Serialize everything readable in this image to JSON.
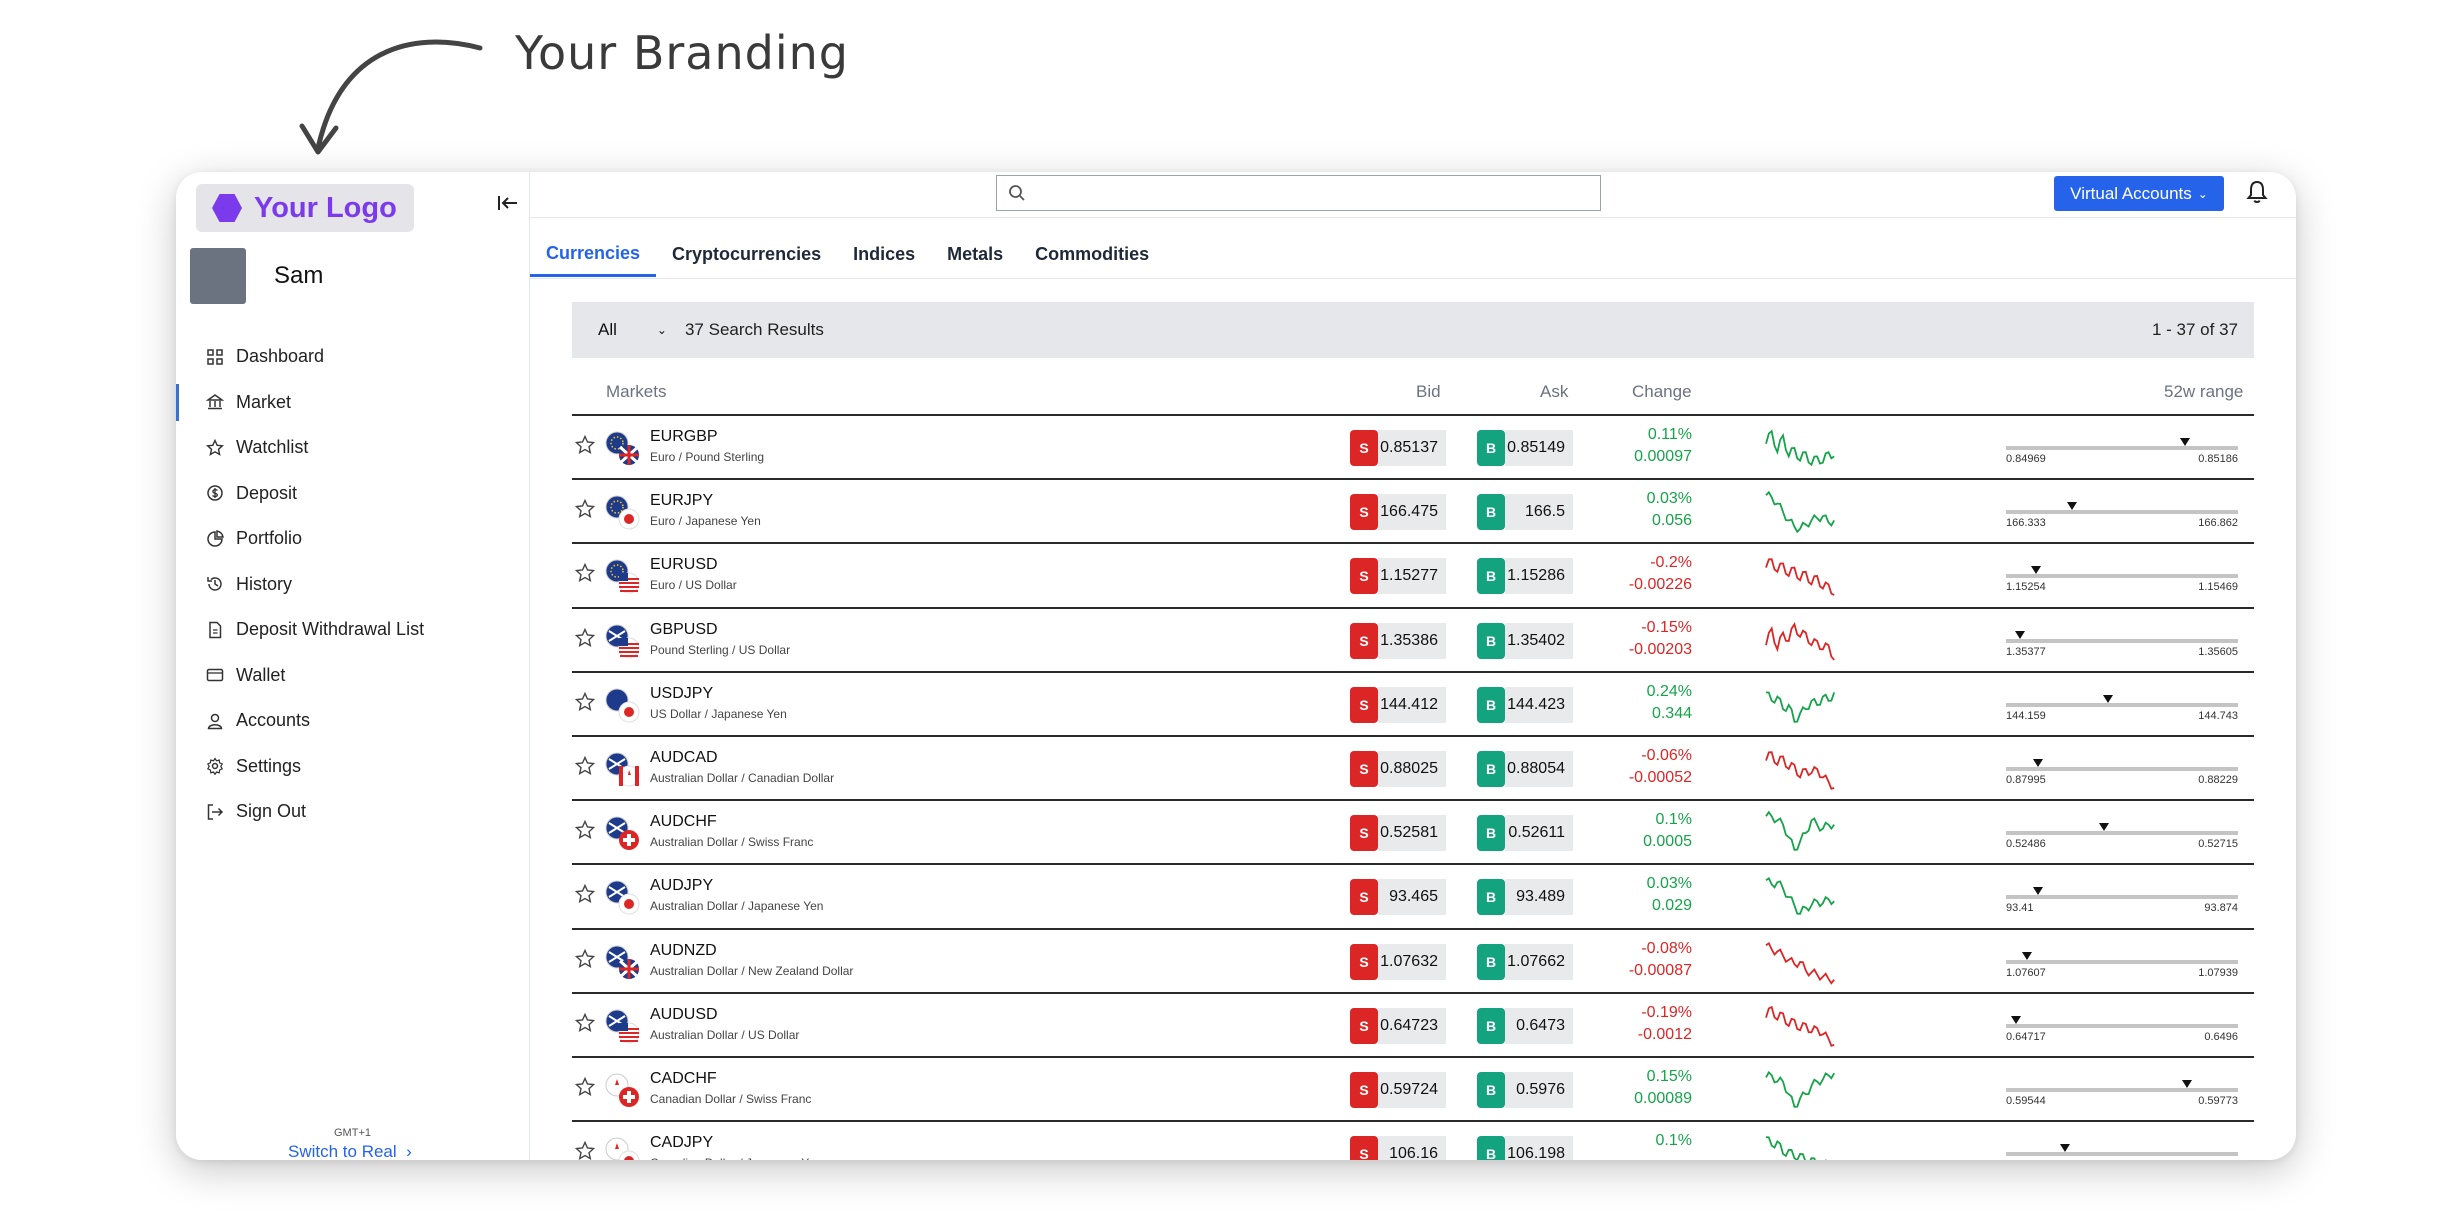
{
  "annotation": {
    "text": "Your Branding"
  },
  "brand": {
    "logo_text": "Your Logo",
    "accent": "#7c3aed"
  },
  "user": {
    "name": "Sam"
  },
  "nav": [
    {
      "label": "Dashboard",
      "icon": "grid-icon"
    },
    {
      "label": "Market",
      "icon": "bank-icon",
      "active": true
    },
    {
      "label": "Watchlist",
      "icon": "star-icon"
    },
    {
      "label": "Deposit",
      "icon": "coin-icon"
    },
    {
      "label": "Portfolio",
      "icon": "pie-chart-icon"
    },
    {
      "label": "History",
      "icon": "history-icon"
    },
    {
      "label": "Deposit Withdrawal List",
      "icon": "document-icon"
    },
    {
      "label": "Wallet",
      "icon": "wallet-icon"
    },
    {
      "label": "Accounts",
      "icon": "user-icon"
    },
    {
      "label": "Settings",
      "icon": "gear-icon"
    },
    {
      "label": "Sign Out",
      "icon": "sign-out-icon"
    }
  ],
  "footer": {
    "timezone": "GMT+1",
    "switch_label": "Switch to Real"
  },
  "search": {
    "placeholder": ""
  },
  "header": {
    "accounts_label": "Virtual Accounts",
    "primary_color": "#2563eb"
  },
  "tabs": [
    {
      "label": "Currencies",
      "active": true
    },
    {
      "label": "Cryptocurrencies"
    },
    {
      "label": "Indices"
    },
    {
      "label": "Metals"
    },
    {
      "label": "Commodities"
    }
  ],
  "filter": {
    "selected": "All",
    "results": "37 Search Results",
    "page_range": "1 - 37 of 37"
  },
  "columns": {
    "markets": "Markets",
    "bid": "Bid",
    "ask": "Ask",
    "change": "Change",
    "range": "52w range"
  },
  "buttons": {
    "sell": "S",
    "buy": "B"
  },
  "colors": {
    "sell": "#dc2626",
    "buy": "#14a37f",
    "up": "#16a34a",
    "down": "#dc2626"
  },
  "rows": [
    {
      "symbol": "EURGBP",
      "name": "Euro / Pound Sterling",
      "bid": "0.85137",
      "ask": "0.85149",
      "pct": "0.11%",
      "abs": "0.00097",
      "dir": "up",
      "lo": "0.84969",
      "hi": "0.85186",
      "pos": 0.77,
      "spark": [
        0.4,
        0.1,
        0.6,
        0.2,
        0.7,
        0.5,
        0.8,
        0.6,
        0.9,
        0.7,
        0.85,
        0.6,
        0.7
      ]
    },
    {
      "symbol": "EURJPY",
      "name": "Euro / Japanese Yen",
      "bid": "166.475",
      "ask": "166.5",
      "pct": "0.03%",
      "abs": "0.056",
      "dir": "up",
      "lo": "166.333",
      "hi": "166.862",
      "pos": 0.27,
      "spark": [
        0.1,
        0.15,
        0.3,
        0.5,
        0.7,
        0.85,
        0.9,
        0.8,
        0.7,
        0.65,
        0.6,
        0.75,
        0.7
      ]
    },
    {
      "symbol": "EURUSD",
      "name": "Euro / US Dollar",
      "bid": "1.15277",
      "ask": "1.15286",
      "pct": "-0.2%",
      "abs": "-0.00226",
      "dir": "down",
      "lo": "1.15254",
      "hi": "1.15469",
      "pos": 0.11,
      "spark": [
        0.3,
        0.1,
        0.4,
        0.2,
        0.5,
        0.3,
        0.6,
        0.4,
        0.7,
        0.5,
        0.8,
        0.7,
        0.95
      ]
    },
    {
      "symbol": "GBPUSD",
      "name": "Pound Sterling / US Dollar",
      "bid": "1.35386",
      "ask": "1.35402",
      "pct": "-0.15%",
      "abs": "-0.00203",
      "dir": "down",
      "lo": "1.35377",
      "hi": "1.35605",
      "pos": 0.04,
      "spark": [
        0.6,
        0.2,
        0.7,
        0.3,
        0.5,
        0.1,
        0.4,
        0.3,
        0.6,
        0.5,
        0.7,
        0.6,
        0.95
      ]
    },
    {
      "symbol": "USDJPY",
      "name": "US Dollar / Japanese Yen",
      "bid": "144.412",
      "ask": "144.423",
      "pct": "0.24%",
      "abs": "0.344",
      "dir": "up",
      "lo": "144.159",
      "hi": "144.743",
      "pos": 0.43,
      "spark": [
        0.2,
        0.4,
        0.3,
        0.6,
        0.5,
        0.9,
        0.7,
        0.6,
        0.4,
        0.5,
        0.3,
        0.4,
        0.2
      ]
    },
    {
      "symbol": "AUDCAD",
      "name": "Australian Dollar / Canadian Dollar",
      "bid": "0.88025",
      "ask": "0.88054",
      "pct": "-0.06%",
      "abs": "-0.00052",
      "dir": "down",
      "lo": "0.87995",
      "hi": "0.88229",
      "pos": 0.12,
      "spark": [
        0.3,
        0.1,
        0.4,
        0.2,
        0.5,
        0.4,
        0.7,
        0.5,
        0.6,
        0.5,
        0.7,
        0.8,
        0.95
      ]
    },
    {
      "symbol": "AUDCHF",
      "name": "Australian Dollar / Swiss Franc",
      "bid": "0.52581",
      "ask": "0.52611",
      "pct": "0.1%",
      "abs": "0.0005",
      "dir": "up",
      "lo": "0.52486",
      "hi": "0.52715",
      "pos": 0.41,
      "spark": [
        0.1,
        0.1,
        0.2,
        0.3,
        0.6,
        0.9,
        0.7,
        0.5,
        0.2,
        0.3,
        0.4,
        0.3,
        0.3
      ]
    },
    {
      "symbol": "AUDJPY",
      "name": "Australian Dollar / Japanese Yen",
      "bid": "93.465",
      "ask": "93.489",
      "pct": "0.03%",
      "abs": "0.029",
      "dir": "up",
      "lo": "93.41",
      "hi": "93.874",
      "pos": 0.12,
      "spark": [
        0.1,
        0.2,
        0.15,
        0.3,
        0.5,
        0.7,
        0.9,
        0.75,
        0.7,
        0.6,
        0.65,
        0.55,
        0.6
      ]
    },
    {
      "symbol": "AUDNZD",
      "name": "Australian Dollar / New Zealand Dollar",
      "bid": "1.07632",
      "ask": "1.07662",
      "pct": "-0.08%",
      "abs": "-0.00087",
      "dir": "down",
      "lo": "1.07607",
      "hi": "1.07939",
      "pos": 0.07,
      "spark": [
        0.1,
        0.2,
        0.25,
        0.35,
        0.45,
        0.55,
        0.5,
        0.7,
        0.75,
        0.8,
        0.85,
        0.9,
        0.92
      ]
    },
    {
      "symbol": "AUDUSD",
      "name": "Australian Dollar / US Dollar",
      "bid": "0.64723",
      "ask": "0.6473",
      "pct": "-0.19%",
      "abs": "-0.0012",
      "dir": "down",
      "lo": "0.64717",
      "hi": "0.6496",
      "pos": 0.02,
      "spark": [
        0.3,
        0.05,
        0.35,
        0.2,
        0.5,
        0.35,
        0.6,
        0.45,
        0.65,
        0.55,
        0.7,
        0.8,
        0.95
      ]
    },
    {
      "symbol": "CADCHF",
      "name": "Canadian Dollar / Swiss Franc",
      "bid": "0.59724",
      "ask": "0.5976",
      "pct": "0.15%",
      "abs": "0.00089",
      "dir": "up",
      "lo": "0.59544",
      "hi": "0.59773",
      "pos": 0.78,
      "spark": [
        0.2,
        0.15,
        0.3,
        0.3,
        0.6,
        0.9,
        0.7,
        0.6,
        0.4,
        0.3,
        0.25,
        0.15,
        0.1
      ]
    },
    {
      "symbol": "CADJPY",
      "name": "Canadian Dollar / Japanese Yen",
      "bid": "106.16",
      "ask": "106.198",
      "pct": "0.1%",
      "abs": "",
      "dir": "up",
      "lo": "",
      "hi": "",
      "pos": 0.24,
      "spark": [
        0.1,
        0.3,
        0.2,
        0.5,
        0.4,
        0.6,
        0.5,
        0.7,
        0.6,
        0.8,
        0.7,
        0.8,
        0.9
      ]
    }
  ]
}
